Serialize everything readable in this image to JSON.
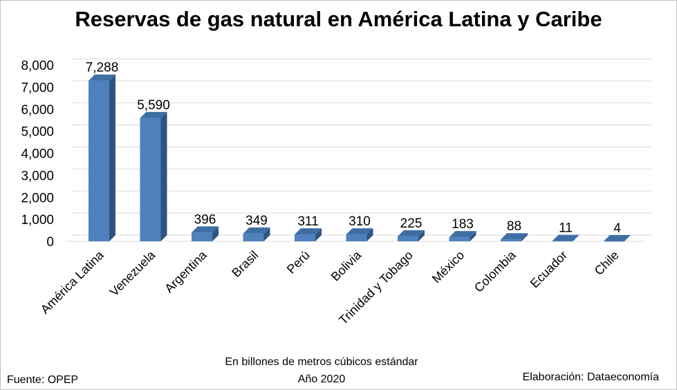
{
  "chart_data": {
    "type": "bar",
    "title": "Reservas de gas natural en América Latina y Caribe",
    "categories": [
      "América Latina",
      "Venezuela",
      "Argentina",
      "Brasil",
      "Perú",
      "Bolivia",
      "Trinidad y Tobago",
      "México",
      "Colombia",
      "Ecuador",
      "Chile"
    ],
    "values": [
      7288,
      5590,
      396,
      349,
      311,
      310,
      225,
      183,
      88,
      11,
      4
    ],
    "value_labels": [
      "7,288",
      "5,590",
      "396",
      "349",
      "311",
      "310",
      "225",
      "183",
      "88",
      "11",
      "4"
    ],
    "yticks": [
      "0",
      "1,000",
      "2,000",
      "3,000",
      "4,000",
      "5,000",
      "6,000",
      "7,000",
      "8,000"
    ],
    "ylim": [
      0,
      8000
    ],
    "grid": true,
    "bar_color": "#4f81bd"
  },
  "footer": {
    "unit_note": "En billones de metros cúbicos estándar",
    "year_note": "Año 2020",
    "source": "Fuente: OPEP",
    "credit": "Elaboración: Dataeconomía"
  }
}
